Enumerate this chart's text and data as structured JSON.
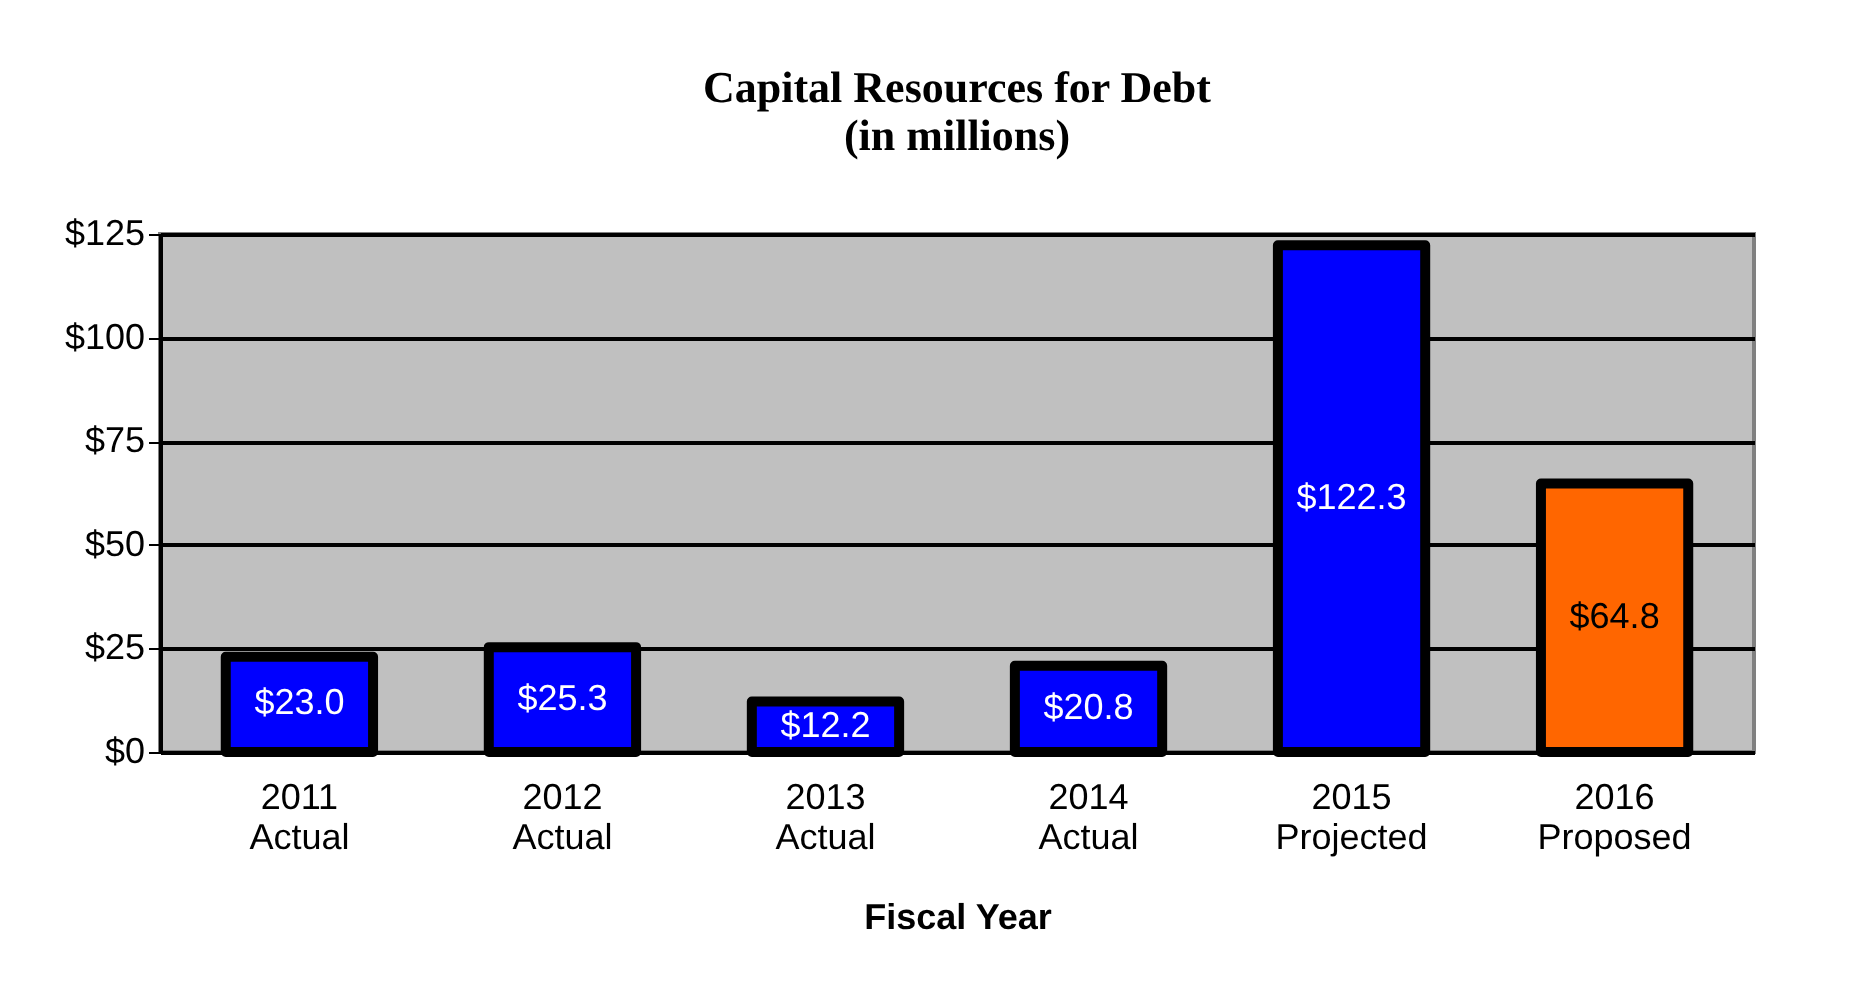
{
  "chart_data": {
    "type": "bar",
    "title": [
      "Capital  Resources for Debt",
      "(in millions)"
    ],
    "xlabel": "Fiscal Year",
    "categories": [
      "2011\nActual",
      "2012\nActual",
      "2013\nActual",
      "2014\nActual",
      "2015\nProjected",
      "2016\nProposed"
    ],
    "values": [
      23.0,
      25.3,
      12.2,
      20.8,
      122.3,
      64.8
    ],
    "value_labels": [
      "$23.0",
      "$25.3",
      "$12.2",
      "$20.8",
      "$122.3",
      "$64.8"
    ],
    "colors": [
      "#0000ff",
      "#0000ff",
      "#0000ff",
      "#0000ff",
      "#0000ff",
      "#ff6600"
    ],
    "ylim": [
      0,
      125
    ],
    "yticks": [
      {
        "value": 0,
        "label": "$0"
      },
      {
        "value": 25,
        "label": "$25"
      },
      {
        "value": 50,
        "label": "$50"
      },
      {
        "value": 75,
        "label": "$75"
      },
      {
        "value": 100,
        "label": "$100"
      },
      {
        "value": 125,
        "label": "$125"
      }
    ],
    "grid": "y"
  }
}
